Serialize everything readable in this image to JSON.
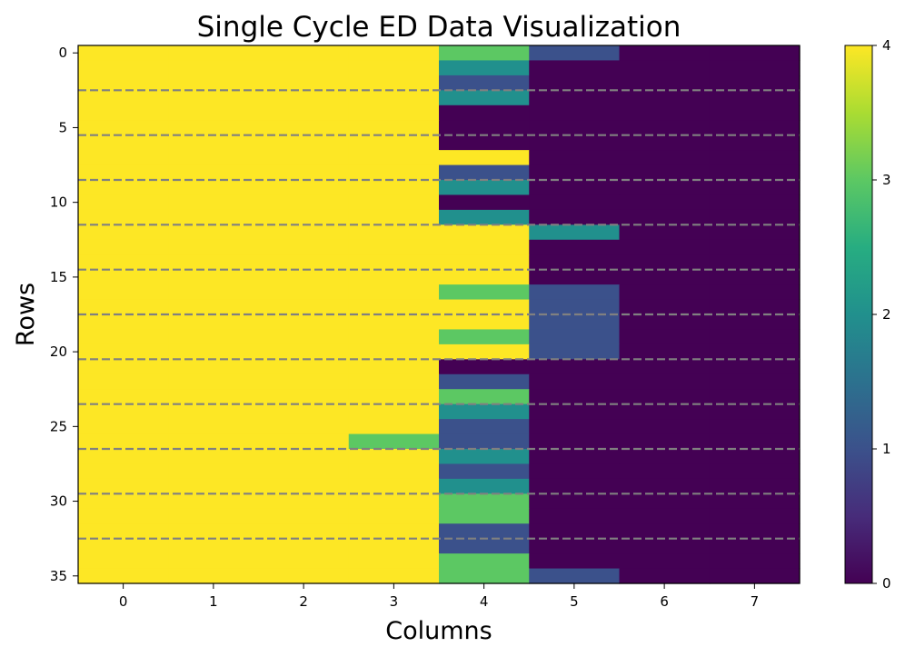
{
  "chart_data": {
    "type": "heatmap",
    "title": "Single Cycle ED Data Visualization",
    "xlabel": "Columns",
    "ylabel": "Rows",
    "x_ticks": [
      0,
      1,
      2,
      3,
      4,
      5,
      6,
      7
    ],
    "x_tick_labels": [
      "0",
      "1",
      "2",
      "3",
      "4",
      "5",
      "6",
      "7"
    ],
    "y_ticks": [
      0,
      5,
      10,
      15,
      20,
      25,
      30,
      35
    ],
    "y_tick_labels": [
      "0",
      "5",
      "10",
      "15",
      "20",
      "25",
      "30",
      "35"
    ],
    "colorbar": {
      "vmin": 0,
      "vmax": 4,
      "ticks": [
        0,
        1,
        2,
        3,
        4
      ],
      "tick_labels": [
        "0",
        "1",
        "2",
        "3",
        "4"
      ],
      "colormap": "viridis"
    },
    "dashed_row_separators": [
      2.5,
      5.5,
      8.5,
      11.5,
      14.5,
      17.5,
      20.5,
      23.5,
      26.5,
      29.5,
      32.5
    ],
    "separator_color": "#808080",
    "n_cols": 8,
    "values": [
      [
        4,
        4,
        4,
        4,
        3,
        1,
        0,
        0
      ],
      [
        4,
        4,
        4,
        4,
        2,
        0,
        0,
        0
      ],
      [
        4,
        4,
        4,
        4,
        1,
        0,
        0,
        0
      ],
      [
        4,
        4,
        4,
        4,
        2,
        0,
        0,
        0
      ],
      [
        4,
        4,
        4,
        4,
        0,
        0,
        0,
        0
      ],
      [
        4,
        4,
        4,
        4,
        0,
        0,
        0,
        0
      ],
      [
        4,
        4,
        4,
        4,
        0,
        0,
        0,
        0
      ],
      [
        4,
        4,
        4,
        4,
        4,
        0,
        0,
        0
      ],
      [
        4,
        4,
        4,
        4,
        1,
        0,
        0,
        0
      ],
      [
        4,
        4,
        4,
        4,
        2,
        0,
        0,
        0
      ],
      [
        4,
        4,
        4,
        4,
        0,
        0,
        0,
        0
      ],
      [
        4,
        4,
        4,
        4,
        2,
        0,
        0,
        0
      ],
      [
        4,
        4,
        4,
        4,
        4,
        2,
        0,
        0
      ],
      [
        4,
        4,
        4,
        4,
        4,
        0,
        0,
        0
      ],
      [
        4,
        4,
        4,
        4,
        4,
        0,
        0,
        0
      ],
      [
        4,
        4,
        4,
        4,
        4,
        0,
        0,
        0
      ],
      [
        4,
        4,
        4,
        4,
        3,
        1,
        0,
        0
      ],
      [
        4,
        4,
        4,
        4,
        4,
        1,
        0,
        0
      ],
      [
        4,
        4,
        4,
        4,
        4,
        1,
        0,
        0
      ],
      [
        4,
        4,
        4,
        4,
        3,
        1,
        0,
        0
      ],
      [
        4,
        4,
        4,
        4,
        4,
        1,
        0,
        0
      ],
      [
        4,
        4,
        4,
        4,
        0,
        0,
        0,
        0
      ],
      [
        4,
        4,
        4,
        4,
        1,
        0,
        0,
        0
      ],
      [
        4,
        4,
        4,
        4,
        3,
        0,
        0,
        0
      ],
      [
        4,
        4,
        4,
        4,
        2,
        0,
        0,
        0
      ],
      [
        4,
        4,
        4,
        4,
        1,
        0,
        0,
        0
      ],
      [
        4,
        4,
        4,
        3,
        1,
        0,
        0,
        0
      ],
      [
        4,
        4,
        4,
        4,
        2,
        0,
        0,
        0
      ],
      [
        4,
        4,
        4,
        4,
        1,
        0,
        0,
        0
      ],
      [
        4,
        4,
        4,
        4,
        2,
        0,
        0,
        0
      ],
      [
        4,
        4,
        4,
        4,
        3,
        0,
        0,
        0
      ],
      [
        4,
        4,
        4,
        4,
        3,
        0,
        0,
        0
      ],
      [
        4,
        4,
        4,
        4,
        1,
        0,
        0,
        0
      ],
      [
        4,
        4,
        4,
        4,
        1,
        0,
        0,
        0
      ],
      [
        4,
        4,
        4,
        4,
        3,
        0,
        0,
        0
      ],
      [
        4,
        4,
        4,
        4,
        3,
        1,
        0,
        0
      ]
    ]
  }
}
